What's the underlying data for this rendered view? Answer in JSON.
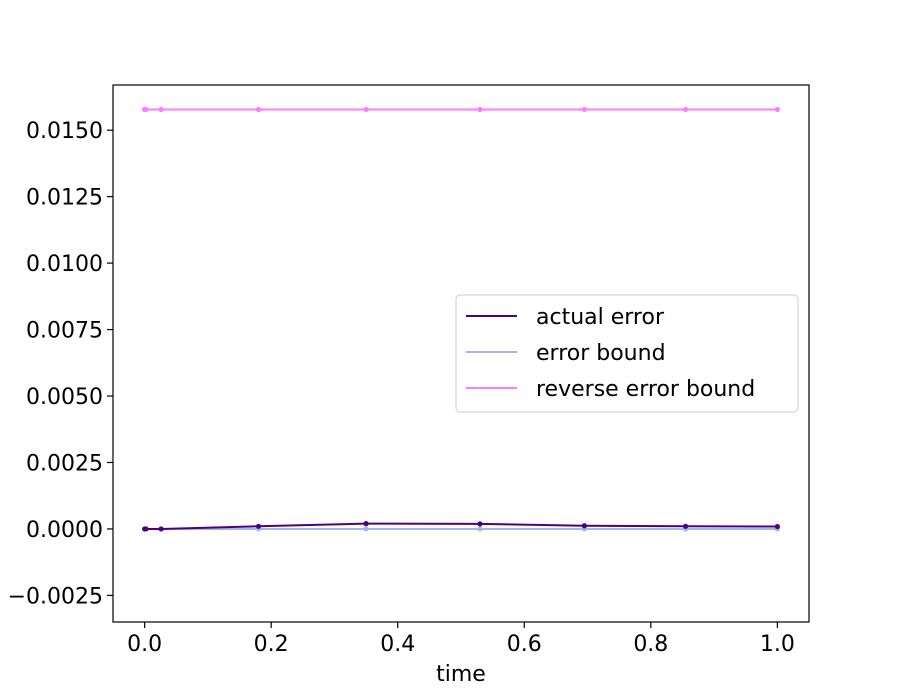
{
  "chart_data": {
    "type": "line",
    "title": "",
    "xlabel": "time",
    "ylabel": "",
    "xlim": [
      -0.05,
      1.05
    ],
    "ylim": [
      -0.0035,
      0.0167
    ],
    "xticks": [
      0.0,
      0.2,
      0.4,
      0.6,
      0.8,
      1.0
    ],
    "xtick_labels": [
      "0.0",
      "0.2",
      "0.4",
      "0.6",
      "0.8",
      "1.0"
    ],
    "yticks": [
      -0.0025,
      0.0,
      0.0025,
      0.005,
      0.0075,
      0.01,
      0.0125,
      0.015
    ],
    "ytick_labels": [
      "−0.0025",
      "0.0000",
      "0.0025",
      "0.0050",
      "0.0075",
      "0.0100",
      "0.0125",
      "0.0150"
    ],
    "grid": false,
    "legend_position": "center-right",
    "series": [
      {
        "name": "actual error",
        "color": "#4b0082",
        "x": [
          0.0,
          0.002,
          0.026,
          0.18,
          0.35,
          0.53,
          0.695,
          0.855,
          1.0
        ],
        "y": [
          0.0,
          0.0,
          0.0,
          0.0001,
          0.0002,
          0.00019,
          0.00012,
          0.0001,
          9e-05
        ]
      },
      {
        "name": "error bound",
        "color": "#a4b6e8",
        "x": [
          0.0,
          0.002,
          0.026,
          0.18,
          0.35,
          0.53,
          0.695,
          0.855,
          1.0
        ],
        "y": [
          0.0,
          0.0,
          0.0,
          0.0,
          0.0,
          0.0,
          0.0,
          0.0,
          0.0
        ]
      },
      {
        "name": "reverse error bound",
        "color": "#ff7bff",
        "x": [
          0.0,
          0.002,
          0.026,
          0.18,
          0.35,
          0.53,
          0.695,
          0.855,
          1.0
        ],
        "y": [
          0.01578,
          0.01578,
          0.01578,
          0.01578,
          0.01578,
          0.01578,
          0.01578,
          0.01578,
          0.01578
        ]
      }
    ]
  }
}
